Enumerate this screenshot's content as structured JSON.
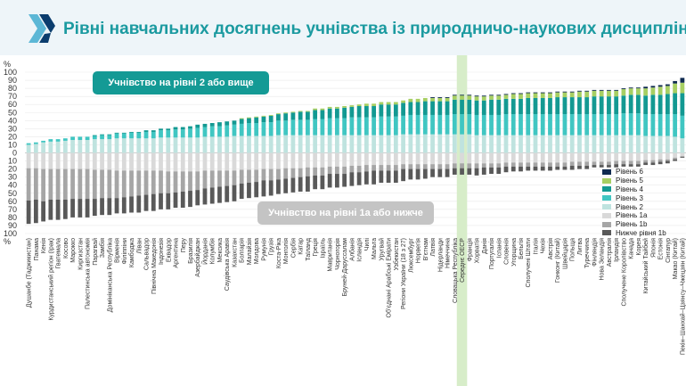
{
  "header": {
    "title": "Рівні навчальних досягнень учнівства із природничо-наукових дисциплін",
    "logo_colors": [
      "#5cb7d6",
      "#0b3d6e"
    ]
  },
  "badges": {
    "above": "Учнівство на рівні 2 або вище",
    "below": "Учнівство на рівні 1а або нижче"
  },
  "highlight_color": "#d7edc9",
  "chart_data": {
    "type": "bar",
    "stacked": true,
    "diverging": true,
    "y_axis": {
      "ticks": [
        "100",
        "90",
        "80",
        "70",
        "60",
        "50",
        "40",
        "30",
        "20",
        "10",
        "0",
        "10",
        "20",
        "30",
        "40",
        "50",
        "60",
        "70",
        "80",
        "90",
        "100"
      ],
      "unit": "%",
      "range": [
        -100,
        100
      ]
    },
    "highlight_category": "Середнє ОЕСР",
    "levels_above": [
      {
        "name": "Рівень 2",
        "color": "#bfe3df"
      },
      {
        "name": "Рівень 3",
        "color": "#40c6c2"
      },
      {
        "name": "Рівень 4",
        "color": "#139992"
      },
      {
        "name": "Рівень 5",
        "color": "#a7cf63"
      },
      {
        "name": "Рівень 6",
        "color": "#0f2a50"
      }
    ],
    "levels_below": [
      {
        "name": "Рівень 1а",
        "color": "#d9d9d9"
      },
      {
        "name": "Рівень 1b",
        "color": "#a6a6a6"
      },
      {
        "name": "Нижче рівня 1b",
        "color": "#595959"
      }
    ],
    "legend": [
      "Рівень 6",
      "Рівень 5",
      "Рівень 4",
      "Рівень 3",
      "Рівень 2",
      "Рівень 1а",
      "Рівень 1b",
      "Нижче рівня 1b"
    ],
    "categories": [
      "Душанбе (Таджикистан)",
      "Панама",
      "Кенія",
      "Курдистанський регіон (Ірак)",
      "Гватемала",
      "Косово",
      "Марокко",
      "Киргизстан",
      "Палестинська автономія",
      "Парагвай",
      "Замбія",
      "Домініканська Республіка",
      "Вірменія",
      "Філіппіни",
      "Камбоджа",
      "Ліван",
      "Сальвадор",
      "Північна Македонія",
      "Індонезія",
      "Еквадор",
      "Аргентина",
      "Перу",
      "Бразилія",
      "Азербайджан",
      "Йорданія",
      "Колумбія",
      "Мексика",
      "Саудівська Аравія",
      "Казахстан",
      "Болгарія",
      "Малайзія",
      "Молдова",
      "Румунія",
      "Грузія",
      "Коста-Ріка",
      "Монголія",
      "Сербія",
      "Катар",
      "Таїланд",
      "Греція",
      "Ізраїль",
      "Мавританія",
      "Чорногорія",
      "Бруней-Даруссалам",
      "Албанія",
      "Ісландія",
      "Чилі",
      "Мальта",
      "Уругвай",
      "Об'єднані Арабські Емірати",
      "Узбекистан",
      "Регіони України (18 з 27)",
      "Люксембург",
      "Норвегія",
      "В'єтнам",
      "Латвія",
      "Нідерланди",
      "Німеччина",
      "Словацька Республіка",
      "Середнє ОЕСР",
      "Франція",
      "Хорватія",
      "Данія",
      "Португалія",
      "Іспанія",
      "Словенія",
      "Угорщина",
      "Бельгія",
      "Сполучені Штати",
      "Італія",
      "Чехія",
      "Австрія",
      "Гонконг (Китай)",
      "Швейцарія",
      "Польща",
      "Литва",
      "Туреччина",
      "Фінляндія",
      "Нова Зеландія",
      "Австралія",
      "Ірландія",
      "Сполучене Королівство",
      "Канада",
      "Корея",
      "Китайський Тайбей",
      "Японія",
      "Естонія",
      "Сінгапур",
      "Макао (Китай)",
      "Пекін–Шанхай–Цзянсу–Чжецзян (Китай)"
    ],
    "series": [
      {
        "name": "Рівень 2",
        "values": [
          10,
          11,
          13,
          14,
          14,
          15,
          16,
          16,
          16,
          17,
          17,
          17,
          18,
          18,
          18,
          18,
          18,
          18,
          19,
          19,
          19,
          19,
          19,
          19,
          20,
          20,
          20,
          20,
          21,
          21,
          21,
          21,
          21,
          21,
          22,
          22,
          22,
          22,
          22,
          22,
          22,
          22,
          22,
          22,
          22,
          22,
          22,
          22,
          22,
          22,
          22,
          23,
          23,
          23,
          23,
          23,
          23,
          23,
          23,
          23,
          23,
          22,
          22,
          22,
          22,
          22,
          22,
          22,
          22,
          22,
          22,
          22,
          22,
          22,
          22,
          22,
          22,
          22,
          22,
          22,
          22,
          22,
          22,
          22,
          21,
          21,
          21,
          21,
          20,
          18
        ]
      },
      {
        "name": "Рівень 3",
        "values": [
          2,
          2,
          2,
          3,
          3,
          3,
          4,
          4,
          4,
          4,
          5,
          5,
          6,
          6,
          7,
          7,
          8,
          8,
          9,
          9,
          10,
          10,
          11,
          12,
          12,
          13,
          13,
          14,
          14,
          15,
          16,
          16,
          17,
          17,
          18,
          18,
          19,
          19,
          19,
          20,
          20,
          21,
          21,
          21,
          22,
          22,
          22,
          22,
          23,
          23,
          23,
          23,
          24,
          24,
          24,
          24,
          24,
          24,
          25,
          25,
          25,
          25,
          25,
          25,
          25,
          26,
          26,
          26,
          26,
          26,
          26,
          26,
          26,
          26,
          26,
          26,
          26,
          26,
          26,
          26,
          26,
          27,
          27,
          27,
          27,
          27,
          27,
          27,
          28,
          28
        ]
      },
      {
        "name": "Рівень 4",
        "values": [
          0,
          0,
          0,
          0,
          0,
          0,
          0,
          0,
          0,
          1,
          1,
          1,
          1,
          1,
          1,
          1,
          2,
          2,
          2,
          2,
          3,
          3,
          3,
          4,
          4,
          4,
          5,
          5,
          5,
          6,
          6,
          7,
          7,
          8,
          8,
          9,
          9,
          10,
          10,
          11,
          11,
          12,
          12,
          13,
          13,
          14,
          14,
          14,
          15,
          15,
          15,
          16,
          16,
          16,
          17,
          17,
          17,
          17,
          18,
          18,
          18,
          18,
          18,
          19,
          19,
          19,
          19,
          19,
          20,
          20,
          20,
          20,
          21,
          21,
          21,
          21,
          21,
          22,
          22,
          22,
          22,
          22,
          23,
          23,
          23,
          24,
          24,
          25,
          26,
          28
        ]
      },
      {
        "name": "Рівень 5",
        "values": [
          0,
          0,
          0,
          0,
          0,
          0,
          0,
          0,
          0,
          0,
          0,
          0,
          0,
          0,
          0,
          0,
          0,
          0,
          0,
          0,
          0,
          0,
          0,
          0,
          0,
          0,
          0,
          0,
          0,
          1,
          1,
          1,
          1,
          1,
          1,
          1,
          1,
          1,
          1,
          2,
          2,
          2,
          2,
          2,
          2,
          2,
          3,
          3,
          3,
          3,
          3,
          3,
          4,
          4,
          4,
          4,
          4,
          4,
          5,
          5,
          5,
          5,
          5,
          5,
          5,
          5,
          6,
          6,
          6,
          6,
          6,
          6,
          6,
          6,
          6,
          7,
          7,
          7,
          7,
          7,
          7,
          8,
          8,
          8,
          9,
          9,
          10,
          10,
          12,
          13
        ]
      },
      {
        "name": "Рівень 6",
        "values": [
          0,
          0,
          0,
          0,
          0,
          0,
          0,
          0,
          0,
          0,
          0,
          0,
          0,
          0,
          0,
          0,
          0,
          0,
          0,
          0,
          0,
          0,
          0,
          0,
          0,
          0,
          0,
          0,
          0,
          0,
          0,
          0,
          0,
          0,
          0,
          0,
          0,
          0,
          0,
          0,
          0,
          0,
          0,
          0,
          0,
          0,
          0,
          0,
          0,
          0,
          0,
          0,
          0,
          0,
          0,
          1,
          1,
          1,
          1,
          1,
          1,
          1,
          1,
          1,
          1,
          1,
          1,
          1,
          1,
          1,
          1,
          1,
          1,
          1,
          1,
          1,
          1,
          1,
          1,
          1,
          1,
          1,
          1,
          1,
          2,
          2,
          2,
          2,
          3,
          6
        ]
      },
      {
        "name": "Рівень 1а",
        "values": [
          -19,
          -19,
          -20,
          -20,
          -20,
          -20,
          -20,
          -20,
          -20,
          -21,
          -21,
          -21,
          -22,
          -22,
          -22,
          -22,
          -22,
          -22,
          -22,
          -23,
          -23,
          -23,
          -23,
          -23,
          -22,
          -22,
          -22,
          -22,
          -22,
          -21,
          -21,
          -21,
          -20,
          -20,
          -20,
          -19,
          -19,
          -19,
          -18,
          -18,
          -18,
          -17,
          -17,
          -17,
          -16,
          -16,
          -15,
          -15,
          -15,
          -15,
          -15,
          -14,
          -14,
          -14,
          -14,
          -14,
          -14,
          -14,
          -13,
          -13,
          -13,
          -13,
          -13,
          -13,
          -13,
          -12,
          -12,
          -12,
          -12,
          -12,
          -12,
          -12,
          -12,
          -12,
          -11,
          -11,
          -11,
          -11,
          -11,
          -11,
          -10,
          -10,
          -10,
          -10,
          -9,
          -9,
          -8,
          -8,
          -6,
          -4
        ]
      },
      {
        "name": "Рівень 1b",
        "values": [
          -40,
          -39,
          -40,
          -38,
          -38,
          -38,
          -37,
          -37,
          -37,
          -36,
          -35,
          -35,
          -34,
          -33,
          -32,
          -31,
          -30,
          -29,
          -28,
          -27,
          -26,
          -25,
          -24,
          -23,
          -22,
          -21,
          -20,
          -19,
          -18,
          -17,
          -16,
          -15,
          -14,
          -14,
          -13,
          -13,
          -12,
          -11,
          -11,
          -10,
          -10,
          -9,
          -9,
          -9,
          -8,
          -8,
          -8,
          -7,
          -7,
          -7,
          -7,
          -6,
          -6,
          -6,
          -6,
          -6,
          -6,
          -6,
          -6,
          -6,
          -6,
          -6,
          -5,
          -5,
          -5,
          -5,
          -5,
          -5,
          -5,
          -5,
          -5,
          -5,
          -5,
          -5,
          -5,
          -5,
          -5,
          -4,
          -4,
          -4,
          -4,
          -4,
          -4,
          -4,
          -3,
          -3,
          -3,
          -2,
          -2,
          -1
        ]
      },
      {
        "name": "Нижче рівня 1b",
        "values": [
          -29,
          -29,
          -25,
          -25,
          -25,
          -24,
          -23,
          -23,
          -23,
          -21,
          -21,
          -21,
          -19,
          -20,
          -20,
          -21,
          -20,
          -21,
          -20,
          -20,
          -19,
          -20,
          -20,
          -19,
          -20,
          -20,
          -20,
          -20,
          -20,
          -19,
          -19,
          -19,
          -20,
          -19,
          -18,
          -18,
          -18,
          -18,
          -19,
          -17,
          -17,
          -17,
          -17,
          -16,
          -17,
          -16,
          -16,
          -17,
          -15,
          -15,
          -15,
          -15,
          -13,
          -13,
          -12,
          -10,
          -10,
          -10,
          -8,
          -8,
          -8,
          -9,
          -9,
          -8,
          -8,
          -7,
          -6,
          -6,
          -5,
          -5,
          -5,
          -5,
          -4,
          -4,
          -5,
          -4,
          -4,
          -3,
          -3,
          -3,
          -4,
          -3,
          -3,
          -3,
          -3,
          -3,
          -3,
          -3,
          -2,
          -1
        ]
      }
    ]
  }
}
